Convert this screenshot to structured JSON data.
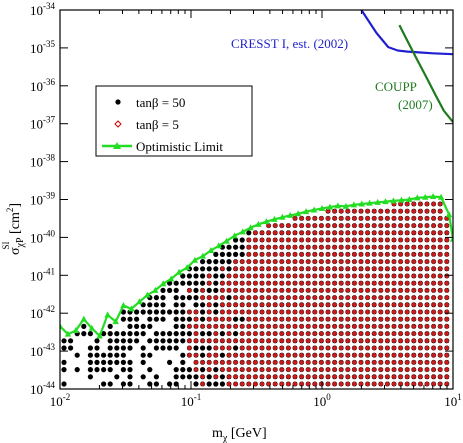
{
  "chart_data": {
    "type": "scatter",
    "xscale": "log",
    "yscale": "log",
    "xlim": [
      0.01,
      10
    ],
    "ylim": [
      1e-44,
      1e-34
    ],
    "x_ticks": [
      {
        "value": 0.01,
        "base": "10",
        "exp": "-2"
      },
      {
        "value": 0.1,
        "base": "10",
        "exp": "-1"
      },
      {
        "value": 1,
        "base": "10",
        "exp": "0"
      },
      {
        "value": 10,
        "base": "10",
        "exp": "1"
      }
    ],
    "y_ticks": [
      {
        "value": 1e-44,
        "base": "10",
        "exp": "-44"
      },
      {
        "value": 1e-43,
        "base": "10",
        "exp": "-43"
      },
      {
        "value": 1e-42,
        "base": "10",
        "exp": "-42"
      },
      {
        "value": 1e-41,
        "base": "10",
        "exp": "-41"
      },
      {
        "value": 1e-40,
        "base": "10",
        "exp": "-40"
      },
      {
        "value": 1e-39,
        "base": "10",
        "exp": "-39"
      },
      {
        "value": 1e-38,
        "base": "10",
        "exp": "-38"
      },
      {
        "value": 1e-37,
        "base": "10",
        "exp": "-37"
      },
      {
        "value": 1e-36,
        "base": "10",
        "exp": "-36"
      },
      {
        "value": 1e-35,
        "base": "10",
        "exp": "-35"
      },
      {
        "value": 1e-34,
        "base": "10",
        "exp": "-34"
      }
    ],
    "xlabel": {
      "main": "m",
      "sub": "χ",
      "unit": " [GeV]"
    },
    "ylabel": {
      "main": "σ",
      "sub": "χP",
      "sup": "SI",
      "unit": " [cm",
      "unit_sup": "2",
      "unit_end": "]"
    },
    "legend": {
      "placement": "upper-left",
      "entries": [
        {
          "label": "tanβ = 50",
          "marker": "filled-circle",
          "color": "#000000"
        },
        {
          "label": "tanβ = 5",
          "marker": "open-diamond",
          "color": "#d40000"
        },
        {
          "label": "Optimistic Limit",
          "marker": "line-triangle",
          "color": "#22dd22"
        }
      ]
    },
    "annotations": [
      {
        "text": "CRESST I, est. (2002)",
        "color": "#1f1fd0"
      },
      {
        "text": "COUPP",
        "color": "#1e7a1e"
      },
      {
        "text": "(2007)",
        "color": "#1e7a1e"
      }
    ],
    "series": [
      {
        "name": "Optimistic Limit",
        "color": "#22dd22",
        "x": [
          0.01,
          0.0115,
          0.0132,
          0.0152,
          0.0175,
          0.0201,
          0.0231,
          0.0266,
          0.0305,
          0.0351,
          0.0404,
          0.0464,
          0.0534,
          0.0614,
          0.0705,
          0.0811,
          0.0933,
          0.107,
          0.123,
          0.142,
          0.163,
          0.187,
          0.215,
          0.248,
          0.285,
          0.327,
          0.376,
          0.433,
          0.498,
          0.572,
          0.658,
          0.756,
          0.87,
          1.0,
          1.15,
          1.32,
          1.52,
          1.75,
          2.01,
          2.31,
          2.66,
          3.05,
          3.51,
          4.04,
          4.64,
          5.34,
          6.14,
          7.05,
          8.11,
          9.33,
          10.0
        ],
        "y": [
          4.5e-43,
          2.8e-43,
          3.5e-43,
          7e-43,
          4e-43,
          2.5e-43,
          9e-43,
          6e-43,
          1.6e-42,
          1.3e-42,
          2e-42,
          3e-42,
          4e-42,
          6e-42,
          8e-42,
          1.2e-41,
          1.6e-41,
          2.5e-41,
          3.2e-41,
          4.5e-41,
          6e-41,
          8e-41,
          1.1e-40,
          1.4e-40,
          1.8e-40,
          2.2e-40,
          2.6e-40,
          3e-40,
          3.4e-40,
          3.8e-40,
          4.2e-40,
          4.8e-40,
          5.3e-40,
          5.8e-40,
          6.3e-40,
          6.8e-40,
          6.6e-40,
          7.2e-40,
          7.6e-40,
          8e-40,
          8.4e-40,
          8.8e-40,
          9.2e-40,
          9.6e-40,
          1e-39,
          1.1e-39,
          1.15e-39,
          1.2e-39,
          1.15e-39,
          4e-40,
          9e-41
        ]
      },
      {
        "name": "CRESST I, est. (2002)",
        "color": "#1f1fd0",
        "x": [
          2.0,
          2.6,
          3.2,
          3.8,
          4.5,
          5.5,
          7.0,
          10.0
        ],
        "y": [
          1e-34,
          2.5e-35,
          1.05e-35,
          8.5e-36,
          8e-36,
          7.6e-36,
          7.2e-36,
          6.8e-36
        ]
      },
      {
        "name": "COUPP (2007)",
        "color": "#1e7a1e",
        "x": [
          3.9,
          4.5,
          5.3,
          6.2,
          7.3,
          8.5,
          10.0
        ],
        "y": [
          4e-35,
          1.5e-35,
          5e-36,
          1.8e-36,
          6e-37,
          2.2e-37,
          1.1e-37
        ]
      },
      {
        "name": "tanβ = 50",
        "color": "#000000",
        "marker": "filled-circle",
        "x_range": [
          0.01,
          10
        ],
        "y_range": [
          1e-44,
          1e-39
        ]
      },
      {
        "name": "tanβ = 5",
        "color": "#d40000",
        "marker": "open-diamond",
        "x_range": [
          0.1,
          10
        ],
        "y_range": [
          1e-44,
          1e-39
        ]
      }
    ]
  }
}
